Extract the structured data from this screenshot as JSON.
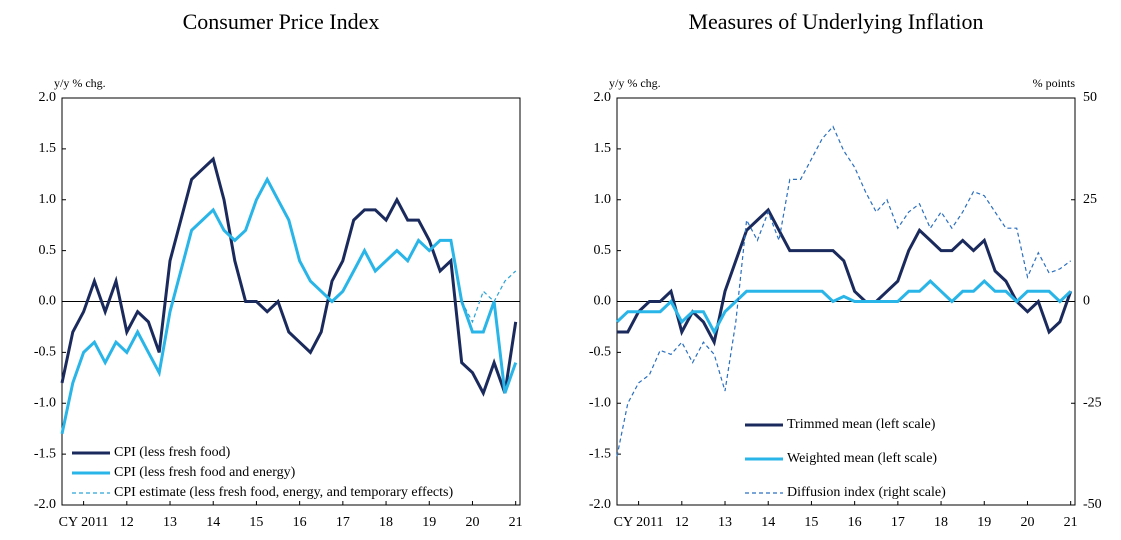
{
  "chart_data": [
    {
      "type": "line",
      "title": "Consumer Price Index",
      "ylabel": "y/y % chg.",
      "x": [
        2011.0,
        2011.25,
        2011.5,
        2011.75,
        2012.0,
        2012.25,
        2012.5,
        2012.75,
        2013.0,
        2013.25,
        2013.5,
        2013.75,
        2014.0,
        2014.25,
        2014.5,
        2014.75,
        2015.0,
        2015.25,
        2015.5,
        2015.75,
        2016.0,
        2016.25,
        2016.5,
        2016.75,
        2017.0,
        2017.25,
        2017.5,
        2017.75,
        2018.0,
        2018.25,
        2018.5,
        2018.75,
        2019.0,
        2019.25,
        2019.5,
        2019.75,
        2020.0,
        2020.25,
        2020.5,
        2020.75,
        2021.0,
        2021.25,
        2021.5
      ],
      "series": [
        {
          "name": "CPI (less fresh food)",
          "color": "#1b2a5c",
          "style": "solid",
          "values": [
            -0.8,
            -0.3,
            -0.1,
            0.2,
            -0.1,
            0.2,
            -0.3,
            -0.1,
            -0.2,
            -0.5,
            0.4,
            0.8,
            1.2,
            1.3,
            1.4,
            1.0,
            0.4,
            0.0,
            0.0,
            -0.1,
            0.0,
            -0.3,
            -0.4,
            -0.5,
            -0.3,
            0.2,
            0.4,
            0.8,
            0.9,
            0.9,
            0.8,
            1.0,
            0.8,
            0.8,
            0.6,
            0.3,
            0.4,
            -0.6,
            -0.7,
            -0.9,
            -0.6,
            -0.9,
            -0.2
          ]
        },
        {
          "name": "CPI (less fresh food and energy)",
          "color": "#29b5e8",
          "style": "solid",
          "values": [
            -1.3,
            -0.8,
            -0.5,
            -0.4,
            -0.6,
            -0.4,
            -0.5,
            -0.3,
            -0.5,
            -0.7,
            -0.1,
            0.3,
            0.7,
            0.8,
            0.9,
            0.7,
            0.6,
            0.7,
            1.0,
            1.2,
            1.0,
            0.8,
            0.4,
            0.2,
            0.1,
            0.0,
            0.1,
            0.3,
            0.5,
            0.3,
            0.4,
            0.5,
            0.4,
            0.6,
            0.5,
            0.6,
            0.6,
            0.0,
            -0.3,
            -0.3,
            0.0,
            -0.9,
            -0.6
          ]
        },
        {
          "name": "CPI estimate (less fresh food, energy, and temporary effects)",
          "color": "#29a3d8",
          "style": "dashed",
          "values": [
            null,
            null,
            null,
            null,
            null,
            null,
            null,
            null,
            null,
            null,
            null,
            null,
            null,
            null,
            null,
            null,
            null,
            null,
            null,
            null,
            null,
            null,
            null,
            null,
            null,
            null,
            null,
            null,
            null,
            null,
            null,
            null,
            null,
            null,
            null,
            null,
            null,
            0.0,
            -0.2,
            0.1,
            0.0,
            0.2,
            0.3
          ]
        }
      ],
      "xlim": [
        2011.0,
        2021.6
      ],
      "xticks": [
        {
          "value": 2011.5,
          "label": "CY 2011"
        },
        {
          "value": 2012.5,
          "label": "12"
        },
        {
          "value": 2013.5,
          "label": "13"
        },
        {
          "value": 2014.5,
          "label": "14"
        },
        {
          "value": 2015.5,
          "label": "15"
        },
        {
          "value": 2016.5,
          "label": "16"
        },
        {
          "value": 2017.5,
          "label": "17"
        },
        {
          "value": 2018.5,
          "label": "18"
        },
        {
          "value": 2019.5,
          "label": "19"
        },
        {
          "value": 2020.5,
          "label": "20"
        },
        {
          "value": 2021.5,
          "label": "21"
        }
      ],
      "ylim": [
        -2,
        2
      ],
      "yticks": [
        {
          "value": -2,
          "label": "-2.0"
        },
        {
          "value": -1.5,
          "label": "-1.5"
        },
        {
          "value": -1,
          "label": "-1.0"
        },
        {
          "value": -0.5,
          "label": "-0.5"
        },
        {
          "value": 0,
          "label": "0.0"
        },
        {
          "value": 0.5,
          "label": "0.5"
        },
        {
          "value": 1,
          "label": "1.0"
        },
        {
          "value": 1.5,
          "label": "1.5"
        },
        {
          "value": 2,
          "label": "2.0"
        }
      ],
      "legend": "lower left"
    },
    {
      "type": "line",
      "title": "Measures of Underlying Inflation",
      "ylabel": "y/y % chg.",
      "y2label": "% points",
      "x": [
        2011.0,
        2011.25,
        2011.5,
        2011.75,
        2012.0,
        2012.25,
        2012.5,
        2012.75,
        2013.0,
        2013.25,
        2013.5,
        2013.75,
        2014.0,
        2014.25,
        2014.5,
        2014.75,
        2015.0,
        2015.25,
        2015.5,
        2015.75,
        2016.0,
        2016.25,
        2016.5,
        2016.75,
        2017.0,
        2017.25,
        2017.5,
        2017.75,
        2018.0,
        2018.25,
        2018.5,
        2018.75,
        2019.0,
        2019.25,
        2019.5,
        2019.75,
        2020.0,
        2020.25,
        2020.5,
        2020.75,
        2021.0,
        2021.25,
        2021.5
      ],
      "series": [
        {
          "name": "Trimmed mean (left scale)",
          "color": "#1b2a5c",
          "style": "solid",
          "values": [
            -0.3,
            -0.3,
            -0.1,
            0.0,
            0.0,
            0.1,
            -0.3,
            -0.1,
            -0.2,
            -0.4,
            0.1,
            0.4,
            0.7,
            0.8,
            0.9,
            0.7,
            0.5,
            0.5,
            0.5,
            0.5,
            0.5,
            0.4,
            0.1,
            0.0,
            0.0,
            0.1,
            0.2,
            0.5,
            0.7,
            0.6,
            0.5,
            0.5,
            0.6,
            0.5,
            0.6,
            0.3,
            0.2,
            0.0,
            -0.1,
            0.0,
            -0.3,
            -0.2,
            0.1
          ]
        },
        {
          "name": "Weighted mean (left scale)",
          "color": "#29b5e8",
          "style": "solid",
          "values": [
            -0.2,
            -0.1,
            -0.1,
            -0.1,
            -0.1,
            0.0,
            -0.2,
            -0.1,
            -0.1,
            -0.3,
            -0.1,
            0.0,
            0.1,
            0.1,
            0.1,
            0.1,
            0.1,
            0.1,
            0.1,
            0.1,
            0.0,
            0.05,
            0.0,
            0.0,
            0.0,
            0.0,
            0.0,
            0.1,
            0.1,
            0.2,
            0.1,
            0.0,
            0.1,
            0.1,
            0.2,
            0.1,
            0.1,
            0.0,
            0.1,
            0.1,
            0.1,
            0.0,
            0.1
          ]
        },
        {
          "name": "Diffusion index (right scale)",
          "color": "#2a6fc0",
          "style": "dashed",
          "axis": "y2",
          "values": [
            -38,
            -25,
            -20,
            -18,
            -12,
            -13,
            -10,
            -15,
            -10,
            -13,
            -22,
            -5,
            20,
            15,
            22,
            15,
            30,
            30,
            35,
            40,
            43,
            37,
            33,
            27,
            22,
            25,
            18,
            22,
            24,
            18,
            22,
            18,
            22,
            27,
            26,
            22,
            18,
            18,
            6,
            12,
            7,
            8,
            10
          ]
        }
      ],
      "xlim": [
        2011.0,
        2021.6
      ],
      "xticks": [
        {
          "value": 2011.5,
          "label": "CY 2011"
        },
        {
          "value": 2012.5,
          "label": "12"
        },
        {
          "value": 2013.5,
          "label": "13"
        },
        {
          "value": 2014.5,
          "label": "14"
        },
        {
          "value": 2015.5,
          "label": "15"
        },
        {
          "value": 2016.5,
          "label": "16"
        },
        {
          "value": 2017.5,
          "label": "17"
        },
        {
          "value": 2018.5,
          "label": "18"
        },
        {
          "value": 2019.5,
          "label": "19"
        },
        {
          "value": 2020.5,
          "label": "20"
        },
        {
          "value": 2021.5,
          "label": "21"
        }
      ],
      "ylim": [
        -2,
        2
      ],
      "yticks": [
        {
          "value": -2,
          "label": "-2.0"
        },
        {
          "value": -1.5,
          "label": "-1.5"
        },
        {
          "value": -1,
          "label": "-1.0"
        },
        {
          "value": -0.5,
          "label": "-0.5"
        },
        {
          "value": 0,
          "label": "0.0"
        },
        {
          "value": 0.5,
          "label": "0.5"
        },
        {
          "value": 1,
          "label": "1.0"
        },
        {
          "value": 1.5,
          "label": "1.5"
        },
        {
          "value": 2,
          "label": "2.0"
        }
      ],
      "y2lim": [
        -50,
        50
      ],
      "y2ticks": [
        -50,
        -25,
        0,
        25,
        50
      ],
      "legend": "lower center"
    }
  ]
}
